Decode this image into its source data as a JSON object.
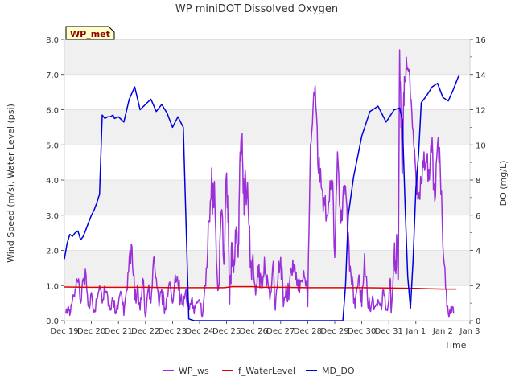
{
  "chart_data": {
    "type": "line",
    "title": "WP miniDOT Dissolved Oxygen",
    "badge": "WP_met",
    "xlabel": "Time",
    "ylabel_left": "Wind Speed (m/s), Water Level (psi)",
    "ylabel_right": "DO (mg/L)",
    "x_ticks": [
      "Dec 19",
      "Dec 20",
      "Dec 21",
      "Dec 22",
      "Dec 23",
      "Dec 24",
      "Dec 25",
      "Dec 26",
      "Dec 27",
      "Dec 28",
      "Dec 29",
      "Dec 30",
      "Dec 31",
      "Jan 1",
      "Jan 2",
      "Jan 3"
    ],
    "x_tick_days": [
      0,
      1,
      2,
      3,
      4,
      5,
      6,
      7,
      8,
      9,
      10,
      11,
      12,
      13,
      14,
      15
    ],
    "xlim_days": [
      0,
      15
    ],
    "ylim_left": [
      0,
      8
    ],
    "ylim_right": [
      0,
      16
    ],
    "yticks_left": [
      "0.0",
      "1.0",
      "2.0",
      "3.0",
      "4.0",
      "5.0",
      "6.0",
      "7.0",
      "8.0"
    ],
    "yticks_left_values": [
      0,
      1,
      2,
      3,
      4,
      5,
      6,
      7,
      8
    ],
    "yticks_right": [
      "0",
      "2",
      "4",
      "6",
      "8",
      "10",
      "12",
      "14",
      "16"
    ],
    "yticks_right_values": [
      0,
      2,
      4,
      6,
      8,
      10,
      12,
      14,
      16
    ],
    "grid": true,
    "legend_position": "bottom",
    "series": [
      {
        "name": "WP_ws",
        "axis": "left",
        "color": "#9b30d9",
        "x": [
          0.05,
          0.15,
          0.2,
          0.3,
          0.4,
          0.5,
          0.6,
          0.7,
          0.8,
          0.9,
          1.0,
          1.1,
          1.2,
          1.3,
          1.4,
          1.5,
          1.6,
          1.7,
          1.8,
          1.9,
          2.0,
          2.1,
          2.2,
          2.3,
          2.4,
          2.5,
          2.6,
          2.7,
          2.8,
          2.9,
          3.0,
          3.1,
          3.2,
          3.3,
          3.4,
          3.5,
          3.6,
          3.7,
          3.8,
          3.9,
          4.0,
          4.1,
          4.2,
          4.3,
          4.4,
          4.5,
          4.6,
          4.7,
          4.8,
          4.9,
          5.0,
          5.1,
          5.2,
          5.3,
          5.4,
          5.5,
          5.6,
          5.7,
          5.8,
          5.9,
          6.0,
          6.05,
          6.1,
          6.15,
          6.2,
          6.25,
          6.3,
          6.35,
          6.4,
          6.45,
          6.5,
          6.55,
          6.6,
          6.65,
          6.7,
          6.8,
          6.9,
          7.0,
          7.1,
          7.2,
          7.3,
          7.4,
          7.5,
          7.6,
          7.7,
          7.8,
          7.9,
          8.0,
          8.1,
          8.2,
          8.3,
          8.4,
          8.5,
          8.6,
          8.7,
          8.8,
          8.9,
          9.0,
          9.1,
          9.2,
          9.3,
          9.4,
          9.5,
          9.6,
          9.7,
          9.8,
          9.9,
          10.0,
          10.1,
          10.2,
          10.3,
          10.4,
          10.5,
          10.6,
          10.7,
          10.8,
          10.9,
          11.0,
          11.1,
          11.2,
          11.3,
          11.4,
          11.5,
          11.6,
          11.7,
          11.8,
          11.9,
          12.0,
          12.05,
          12.1,
          12.15,
          12.2,
          12.25,
          12.3,
          12.35,
          12.4,
          12.45,
          12.5,
          12.55,
          12.6,
          12.7,
          12.8,
          12.9,
          13.0,
          13.1,
          13.2,
          13.3,
          13.4,
          13.5,
          13.6,
          13.7,
          13.8,
          13.9,
          14.0,
          14.1,
          14.2,
          14.3,
          14.4
        ],
        "y": [
          0.2,
          0.4,
          0.15,
          0.6,
          0.9,
          1.1,
          0.5,
          1.2,
          1.3,
          0.4,
          0.8,
          0.3,
          0.6,
          1.0,
          0.5,
          0.9,
          0.7,
          0.3,
          0.6,
          0.2,
          0.5,
          0.8,
          0.15,
          0.9,
          1.8,
          2.1,
          0.6,
          1.0,
          0.3,
          1.2,
          0.1,
          0.9,
          0.5,
          1.8,
          1.2,
          0.4,
          0.9,
          0.2,
          0.7,
          1.1,
          0.5,
          1.3,
          1.1,
          0.6,
          0.4,
          0.9,
          0.3,
          0.6,
          0.2,
          0.5,
          0.6,
          0.1,
          1.0,
          2.0,
          3.4,
          3.9,
          2.5,
          0.9,
          3.1,
          1.6,
          4.2,
          2.8,
          0.7,
          1.3,
          2.2,
          1.6,
          1.7,
          2.6,
          1.9,
          2.2,
          4.8,
          5.2,
          4.3,
          3.0,
          4.1,
          3.2,
          1.7,
          1.3,
          1.0,
          1.6,
          0.9,
          1.8,
          1.3,
          0.6,
          1.5,
          0.3,
          1.2,
          1.8,
          0.4,
          1.0,
          0.6,
          1.4,
          1.6,
          1.0,
          0.8,
          1.1,
          1.2,
          0.4,
          5.0,
          6.1,
          6.1,
          4.2,
          3.8,
          3.5,
          3.0,
          3.4,
          4.0,
          1.8,
          4.8,
          3.2,
          3.5,
          3.8,
          2.5,
          1.3,
          0.5,
          0.8,
          1.3,
          0.4,
          1.9,
          0.8,
          0.3,
          0.7,
          0.4,
          0.6,
          0.5,
          0.9,
          0.3,
          0.6,
          1.2,
          0.4,
          1.0,
          1.9,
          1.5,
          2.3,
          1.2,
          7.7,
          5.5,
          4.2,
          6.5,
          6.8,
          7.2,
          6.3,
          5.4,
          4.2,
          3.5,
          3.9,
          4.8,
          4.5,
          4.0,
          5.2,
          3.4,
          5.0,
          4.4,
          2.1,
          0.9,
          0.2,
          0.4,
          0.2
        ],
        "wiggle_amp": [
          0.1,
          0.1,
          0.1,
          0.2,
          0.2,
          0.25,
          0.2,
          0.3,
          0.3,
          0.2,
          0.2,
          0.2,
          0.2,
          0.25,
          0.2,
          0.2,
          0.2,
          0.15,
          0.2,
          0.15,
          0.15,
          0.25,
          0.1,
          0.3,
          0.35,
          0.35,
          0.3,
          0.3,
          0.2,
          0.3,
          0.1,
          0.3,
          0.2,
          0.35,
          0.3,
          0.2,
          0.3,
          0.15,
          0.25,
          0.3,
          0.2,
          0.3,
          0.3,
          0.25,
          0.2,
          0.25,
          0.2,
          0.2,
          0.15,
          0.2,
          0.25,
          0.1,
          0.35,
          0.6,
          0.8,
          0.8,
          0.7,
          0.5,
          0.8,
          0.6,
          0.9,
          0.8,
          0.4,
          0.5,
          0.6,
          0.5,
          0.5,
          0.6,
          0.5,
          0.6,
          0.6,
          0.6,
          0.6,
          0.6,
          0.7,
          0.6,
          0.5,
          0.4,
          0.4,
          0.5,
          0.4,
          0.5,
          0.4,
          0.3,
          0.5,
          0.2,
          0.4,
          0.5,
          0.2,
          0.4,
          0.3,
          0.4,
          0.4,
          0.4,
          0.3,
          0.4,
          0.4,
          0.2,
          0.6,
          0.6,
          0.6,
          0.6,
          0.5,
          0.5,
          0.5,
          0.5,
          0.6,
          0.5,
          0.6,
          0.6,
          0.5,
          0.5,
          0.5,
          0.4,
          0.3,
          0.4,
          0.4,
          0.2,
          0.4,
          0.3,
          0.2,
          0.3,
          0.2,
          0.3,
          0.3,
          0.3,
          0.2,
          0.3,
          0.4,
          0.2,
          0.3,
          0.5,
          0.5,
          0.5,
          0.4,
          0.6,
          0.6,
          0.6,
          0.6,
          0.5,
          0.5,
          0.5,
          0.5,
          0.5,
          0.5,
          0.5,
          0.5,
          0.5,
          0.5,
          0.6,
          0.5,
          0.5,
          0.5,
          0.4,
          0.3,
          0.2,
          0.2,
          0.1
        ]
      },
      {
        "name": "f_WaterLevel",
        "axis": "left",
        "color": "#e00000",
        "x": [
          0,
          1,
          2,
          3,
          4,
          5,
          5.9,
          6.2,
          7.0,
          7.3,
          8,
          9,
          10,
          11,
          12,
          13,
          13.5,
          14,
          14.5
        ],
        "y": [
          0.96,
          0.95,
          0.95,
          0.95,
          0.94,
          0.94,
          0.94,
          0.97,
          0.97,
          0.95,
          0.95,
          0.94,
          0.94,
          0.94,
          0.93,
          0.92,
          0.91,
          0.9,
          0.9
        ]
      },
      {
        "name": "MD_DO",
        "axis": "right",
        "color": "#0000dd",
        "x": [
          0.0,
          0.1,
          0.2,
          0.3,
          0.4,
          0.5,
          0.6,
          0.7,
          0.8,
          0.9,
          1.0,
          1.1,
          1.2,
          1.3,
          1.4,
          1.5,
          1.6,
          1.65,
          1.7,
          1.8,
          1.85,
          2.0,
          2.2,
          2.4,
          2.6,
          2.8,
          3.0,
          3.2,
          3.4,
          3.6,
          3.8,
          4.0,
          4.2,
          4.4,
          4.6,
          4.8,
          5.0,
          5.2,
          5.4,
          5.6,
          5.8,
          6.0,
          6.2,
          6.35,
          6.45,
          6.6,
          7.0,
          8.0,
          9.0,
          10.0,
          10.3,
          10.4,
          10.5,
          10.7,
          11.0,
          11.3,
          11.6,
          11.9,
          12.2,
          12.4,
          12.5,
          12.6,
          12.7,
          12.8,
          12.9,
          13.0,
          13.1,
          13.2,
          13.4,
          13.6,
          13.8,
          14.0,
          14.2,
          14.4,
          14.6
        ],
        "y": [
          3.5,
          4.4,
          4.9,
          4.8,
          5.0,
          5.1,
          4.6,
          4.8,
          5.2,
          5.6,
          6.0,
          6.3,
          6.7,
          7.2,
          11.7,
          11.5,
          11.6,
          11.6,
          11.6,
          11.7,
          11.5,
          11.6,
          11.3,
          12.6,
          13.3,
          12.0,
          12.3,
          12.6,
          11.9,
          12.3,
          11.8,
          11.0,
          11.6,
          11.0,
          0.1,
          0.0,
          0.0,
          0.0,
          0.0,
          0.0,
          0.0,
          0.0,
          0.0,
          0.0,
          0.0,
          0.0,
          0.0,
          0.0,
          0.0,
          0.0,
          0.0,
          2.0,
          6.0,
          8.2,
          10.5,
          11.9,
          12.2,
          11.3,
          12.0,
          12.1,
          11.4,
          6.6,
          2.5,
          0.7,
          3.5,
          7.5,
          9.5,
          12.4,
          12.8,
          13.3,
          13.5,
          12.7,
          12.5,
          13.2,
          14.0
        ]
      }
    ]
  }
}
